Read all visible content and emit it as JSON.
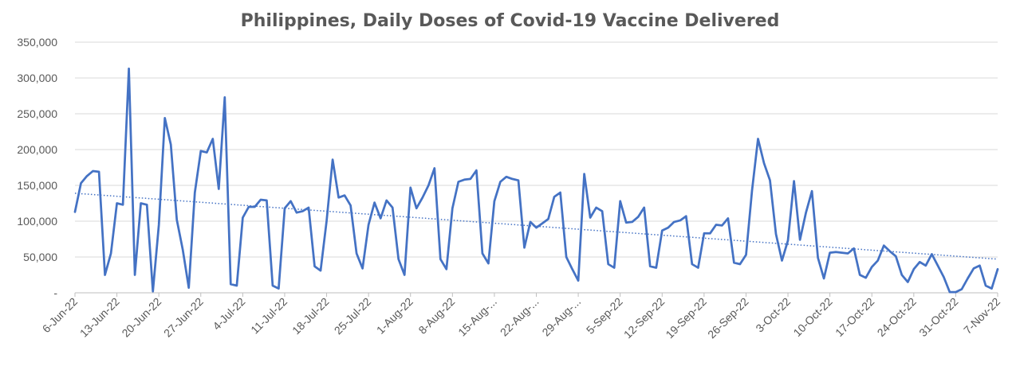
{
  "chart_data": {
    "type": "line",
    "title": "Philippines, Daily Doses of Covid-19 Vaccine Delivered",
    "xlabel": "",
    "ylabel": "",
    "ylim": [
      0,
      350000
    ],
    "y_ticks": [
      0,
      50000,
      100000,
      150000,
      200000,
      250000,
      300000,
      350000
    ],
    "y_tick_labels": [
      "-",
      "50,000",
      "100,000",
      "150,000",
      "200,000",
      "250,000",
      "300,000",
      "350,000"
    ],
    "x_start_date": "2022-06-06",
    "x_tick_labels": [
      "6-Jun-22",
      "13-Jun-22",
      "20-Jun-22",
      "27-Jun-22",
      "4-Jul-22",
      "11-Jul-22",
      "18-Jul-22",
      "25-Jul-22",
      "1-Aug-22",
      "8-Aug-22",
      "15-Aug-...",
      "22-Aug-...",
      "29-Aug-...",
      "5-Sep-22",
      "12-Sep-22",
      "19-Sep-22",
      "26-Sep-22",
      "3-Oct-22",
      "10-Oct-22",
      "17-Oct-22",
      "24-Oct-22",
      "31-Oct-22",
      "7-Nov-22"
    ],
    "grid": true,
    "legend": "none",
    "colors": {
      "series": "#4472C4",
      "trend": "#4472C4",
      "grid": "#d9d9d9",
      "text": "#595959"
    },
    "series": [
      {
        "values": [
          113000,
          153000,
          163000,
          170000,
          169000,
          25000,
          55000,
          125000,
          123000,
          313000,
          25000,
          125000,
          123000,
          2000,
          95000,
          244000,
          207000,
          102000,
          60000,
          7000,
          140000,
          198000,
          196000,
          215000,
          145000,
          273000,
          12000,
          10000,
          105000,
          120000,
          120000,
          130000,
          129000,
          10000,
          6000,
          118000,
          128000,
          112000,
          114000,
          119000,
          37000,
          31000,
          100000,
          186000,
          133000,
          136000,
          122000,
          55000,
          34000,
          95000,
          126000,
          104000,
          129000,
          119000,
          47000,
          25000,
          147000,
          118000,
          133000,
          150000,
          174000,
          47000,
          33000,
          118000,
          155000,
          158000,
          159000,
          171000,
          55000,
          41000,
          128000,
          155000,
          162000,
          159000,
          157000,
          63000,
          99000,
          91000,
          97000,
          103000,
          134000,
          140000,
          50000,
          33000,
          17000,
          166000,
          105000,
          119000,
          114000,
          40000,
          35000,
          128000,
          98000,
          99000,
          106000,
          119000,
          37000,
          35000,
          87000,
          91000,
          99000,
          101000,
          107000,
          40000,
          35000,
          83000,
          83000,
          95000,
          94000,
          104000,
          42000,
          40000,
          53000,
          143000,
          215000,
          181000,
          157000,
          82000,
          45000,
          73000,
          156000,
          74000,
          112000,
          142000,
          49000,
          20000,
          56000,
          57000,
          56000,
          55000,
          62000,
          25000,
          21000,
          36000,
          45000,
          66000,
          58000,
          51000,
          25000,
          15000,
          33000,
          43000,
          38000,
          54000,
          38000,
          22000,
          1000,
          1000,
          5000,
          20000,
          34000,
          38000,
          10000,
          6000,
          33000
        ]
      }
    ],
    "trendline": {
      "type": "linear",
      "start": 139000,
      "end": 47000
    }
  }
}
